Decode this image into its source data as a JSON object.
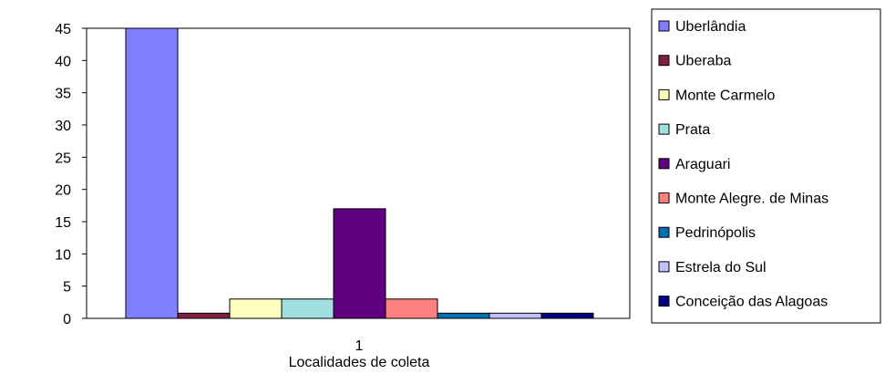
{
  "chart_data": {
    "type": "bar",
    "title": "",
    "xlabel": "Localidades de coleta",
    "ylabel": "",
    "categories": [
      "1"
    ],
    "ylim": [
      0,
      45
    ],
    "yticks": [
      0,
      5,
      10,
      15,
      20,
      25,
      30,
      35,
      40,
      45
    ],
    "grid": false,
    "legend_position": "right",
    "series": [
      {
        "name": "Uberlândia",
        "values": [
          45
        ],
        "color": "#8080ff"
      },
      {
        "name": "Uberaba",
        "values": [
          0.8
        ],
        "color": "#802040"
      },
      {
        "name": "Monte Carmelo",
        "values": [
          3
        ],
        "color": "#ffffc0"
      },
      {
        "name": "Prata",
        "values": [
          3
        ],
        "color": "#a0e0e0"
      },
      {
        "name": "Araguari",
        "values": [
          17
        ],
        "color": "#600080"
      },
      {
        "name": "Monte Alegre. de Minas",
        "values": [
          3
        ],
        "color": "#ff8080"
      },
      {
        "name": "Pedrinópolis",
        "values": [
          0.8
        ],
        "color": "#0070b0"
      },
      {
        "name": "Estrela do Sul",
        "values": [
          0.8
        ],
        "color": "#c0c0ff"
      },
      {
        "name": "Conceição das Alagoas",
        "values": [
          0.8
        ],
        "color": "#000080"
      }
    ]
  }
}
